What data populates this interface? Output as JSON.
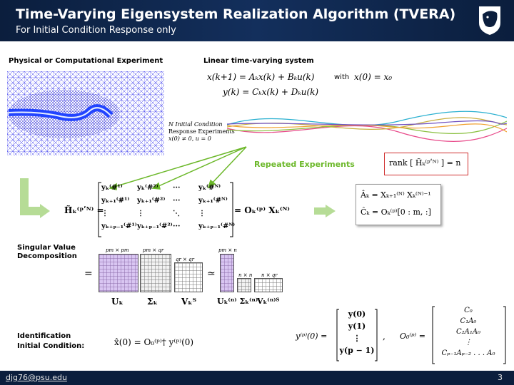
{
  "header": {
    "title": "Time-Varying Eigensystem Realization Algorithm (TVERA)",
    "subtitle": "For Initial Condition Response only"
  },
  "sections": {
    "experiment": "Physical or Computational Experiment",
    "system": "Linear time-varying system",
    "svd_line1": "Singular Value",
    "svd_line2": "Decomposition",
    "ident_line1": "Identification",
    "ident_line2": "Initial Condition:"
  },
  "equations": {
    "state": "x(k+1) = Aₖx(k) + Bₖu(k)",
    "with": "with",
    "ic": "x(0) = x₀",
    "output": "y(k) = Cₖx(k) + Dₖu(k)",
    "rank": "rank [ H̃ₖ⁽ᵖʹᴺ⁾ ] = n",
    "hankel_lhs": "H̃ₖ⁽ᵖʹᴺ⁾ =",
    "hankel_rhs": "= Oₖ⁽ᵖ⁾ Xₖ⁽ᴺ⁾",
    "a_hat": "Âₖ = Xₖ₊₁⁽ᴺ⁾ Xₖ⁽ᴺ⁾⁻¹",
    "c_hat": "Ĉₖ = Oₖ⁽ᵖ⁾[0 : m, :]",
    "x0_hat": "x̂(0) = O₀⁽ᵖ⁾† y⁽ᵖ⁾(0)",
    "ystack_lhs": "y⁽ᵖ⁾(0) =",
    "o0_lhs": "O₀⁽ᵖ⁾ =",
    "equals": "=",
    "approx": "≃",
    "comma": ","
  },
  "experiments": {
    "line1": "N Initial Condition",
    "line2": "Response Experiments",
    "line3": "x(0) ≠ 0, u = 0"
  },
  "repeated": "Repeated Experiments",
  "hankel": {
    "rows": [
      [
        "yₖ⁽#¹⁾",
        "yₖ⁽#²⁾",
        "···",
        "yₖ⁽#ᴺ⁾"
      ],
      [
        "yₖ₊₁⁽#¹⁾",
        "yₖ₊₁⁽#²⁾",
        "···",
        "yₖ₊₁⁽#ᴺ⁾"
      ],
      [
        "⋮",
        "⋮",
        "⋱",
        "⋮"
      ],
      [
        "yₖ₊ₚ₋₁⁽#¹⁾",
        "yₖ₊ₚ₋₁⁽#²⁾",
        "···",
        "yₖ₊ₚ₋₁⁽#ᴺ⁾"
      ]
    ]
  },
  "svd": {
    "dims": [
      "pm × pm",
      "pm × qr",
      "qr × qr",
      "pm × n",
      "n × n",
      "n × qr"
    ],
    "names": [
      "Uₖ",
      "Σₖ",
      "Vₖᵀ",
      "Uₖ⁽ⁿ⁾ Σₖ⁽ⁿ⁾",
      "Vₖ⁽ⁿ⁾ᵀ"
    ]
  },
  "ystack": [
    "y(0)",
    "y(1)",
    "⋮",
    "y(p − 1)"
  ],
  "o0": [
    "C₀",
    "C₁A₀",
    "C₂A₁A₀",
    "⋮",
    "Cₚ₋₁Aₚ₋₂ . . . A₀"
  ],
  "footer": {
    "email": "djg76@psu.edu",
    "page": "3"
  },
  "colors": {
    "header_bg": "#0b1e3d",
    "accent_green": "#6cb82a",
    "grid_fill": "#d9c6f2",
    "mesh_blue": "#3333ee",
    "rank_box": "#d03030"
  }
}
